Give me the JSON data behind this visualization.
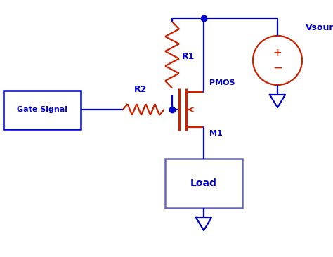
{
  "blue": "#0000CC",
  "red": "#CC2200",
  "load_box_color": "#6666BB",
  "gate_box_color": "#3333BB",
  "bg": "#ffffff",
  "gate_signal_label": "Gate Signal",
  "r1_label": "R1",
  "r2_label": "R2",
  "pmos_label": "PMOS",
  "m1_label": "M1",
  "vsource_label": "Vsource",
  "load_label": "Load",
  "figsize": [
    4.74,
    3.66
  ],
  "dpi": 100,
  "lw": 1.6,
  "lw_thick": 2.2
}
